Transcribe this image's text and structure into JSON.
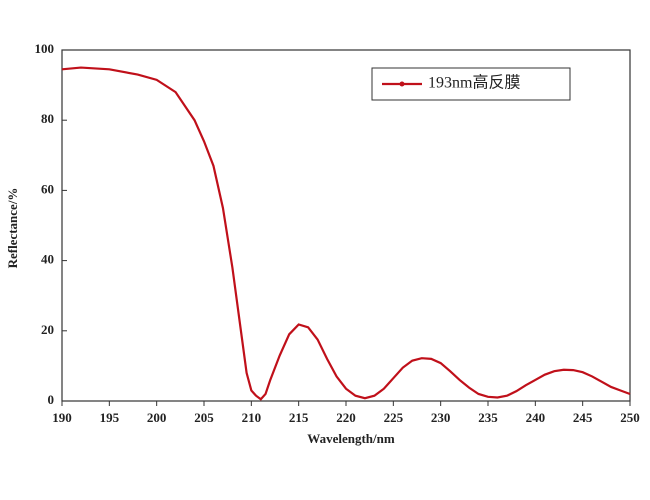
{
  "chart_data": {
    "type": "line",
    "xlabel": "Wavelength/nm",
    "ylabel": "Reflectance/%",
    "x": [
      190,
      192,
      195,
      198,
      200,
      202,
      204,
      205,
      206,
      207,
      208,
      209,
      209.5,
      210,
      210.5,
      211,
      211.5,
      212,
      213,
      214,
      215,
      216,
      217,
      218,
      219,
      220,
      221,
      222,
      223,
      224,
      225,
      226,
      227,
      228,
      229,
      230,
      231,
      232,
      233,
      234,
      235,
      236,
      237,
      238,
      239,
      240,
      241,
      242,
      243,
      244,
      245,
      246,
      247,
      248,
      249,
      250
    ],
    "series": [
      {
        "name": "193nm高反膜",
        "color": "#c0101a",
        "values": [
          94.5,
          95,
          94.5,
          93,
          91.5,
          88,
          80,
          74,
          67,
          55,
          38,
          18,
          8,
          3,
          1.5,
          0.5,
          2,
          6,
          13,
          19,
          21.8,
          21,
          17.5,
          12,
          7,
          3.5,
          1.5,
          0.8,
          1.5,
          3.5,
          6.5,
          9.5,
          11.5,
          12.2,
          12,
          10.8,
          8.5,
          6,
          3.8,
          2,
          1.2,
          1,
          1.5,
          2.8,
          4.5,
          6,
          7.5,
          8.5,
          8.9,
          8.8,
          8.2,
          7,
          5.5,
          4,
          3,
          2
        ]
      }
    ],
    "xlim": [
      190,
      250
    ],
    "xticks": [
      190,
      195,
      200,
      205,
      210,
      215,
      220,
      225,
      230,
      235,
      240,
      245,
      250
    ],
    "ylim": [
      0,
      100
    ],
    "yticks": [
      0,
      20,
      40,
      60,
      80,
      100
    ],
    "grid": false,
    "legend": "upper right"
  }
}
